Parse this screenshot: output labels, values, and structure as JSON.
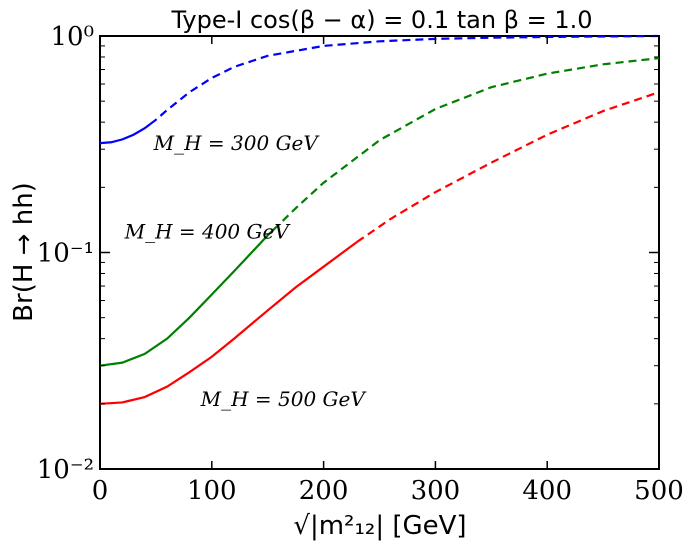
{
  "chart_data": {
    "type": "line",
    "title": "Type-I cos(β − α) = 0.1 tan β = 1.0",
    "xlabel": "√|m²₁₂| [GeV]",
    "ylabel": "Br(H → hh)",
    "xlim": [
      0,
      500
    ],
    "ylim": [
      0.01,
      1
    ],
    "yscale": "log",
    "grid": false,
    "x_ticks": [
      0,
      100,
      200,
      300,
      400,
      500
    ],
    "x_tick_labels": [
      "0",
      "100",
      "200",
      "300",
      "400",
      "500"
    ],
    "y_ticks": [
      0.01,
      0.1,
      1
    ],
    "y_tick_labels": [
      "10⁻²",
      "10⁻¹",
      "10⁰"
    ],
    "series": [
      {
        "color": "#0000ff",
        "x": [
          0,
          10,
          20,
          30,
          40,
          50,
          60,
          80,
          100,
          120,
          150,
          200,
          250,
          300,
          350,
          400,
          450,
          500
        ],
        "values": [
          0.32,
          0.323,
          0.333,
          0.35,
          0.375,
          0.41,
          0.455,
          0.55,
          0.64,
          0.72,
          0.81,
          0.9,
          0.945,
          0.97,
          0.982,
          0.99,
          0.995,
          1.0
        ],
        "solid_until": 45
      },
      {
        "color": "#008000",
        "x": [
          0,
          20,
          40,
          60,
          80,
          100,
          120,
          150,
          175,
          200,
          250,
          300,
          350,
          400,
          450,
          500
        ],
        "values": [
          0.03,
          0.031,
          0.034,
          0.04,
          0.05,
          0.064,
          0.082,
          0.12,
          0.16,
          0.21,
          0.33,
          0.46,
          0.58,
          0.67,
          0.74,
          0.79
        ],
        "solid_until": 155
      },
      {
        "color": "#ff0000",
        "x": [
          0,
          20,
          40,
          60,
          80,
          100,
          120,
          150,
          175,
          200,
          230,
          260,
          300,
          350,
          400,
          450,
          500
        ],
        "values": [
          0.02,
          0.0203,
          0.0215,
          0.024,
          0.028,
          0.033,
          0.04,
          0.054,
          0.069,
          0.086,
          0.112,
          0.143,
          0.19,
          0.26,
          0.35,
          0.45,
          0.55
        ],
        "solid_until": 230
      }
    ],
    "annotations": [
      {
        "text": "M_H = 300 GeV",
        "at": [
          48,
          0.32
        ]
      },
      {
        "text": "M_H = 400 GeV",
        "at": [
          22,
          0.125
        ]
      },
      {
        "text": "M_H = 500 GeV",
        "at": [
          90,
          0.021
        ]
      }
    ]
  }
}
